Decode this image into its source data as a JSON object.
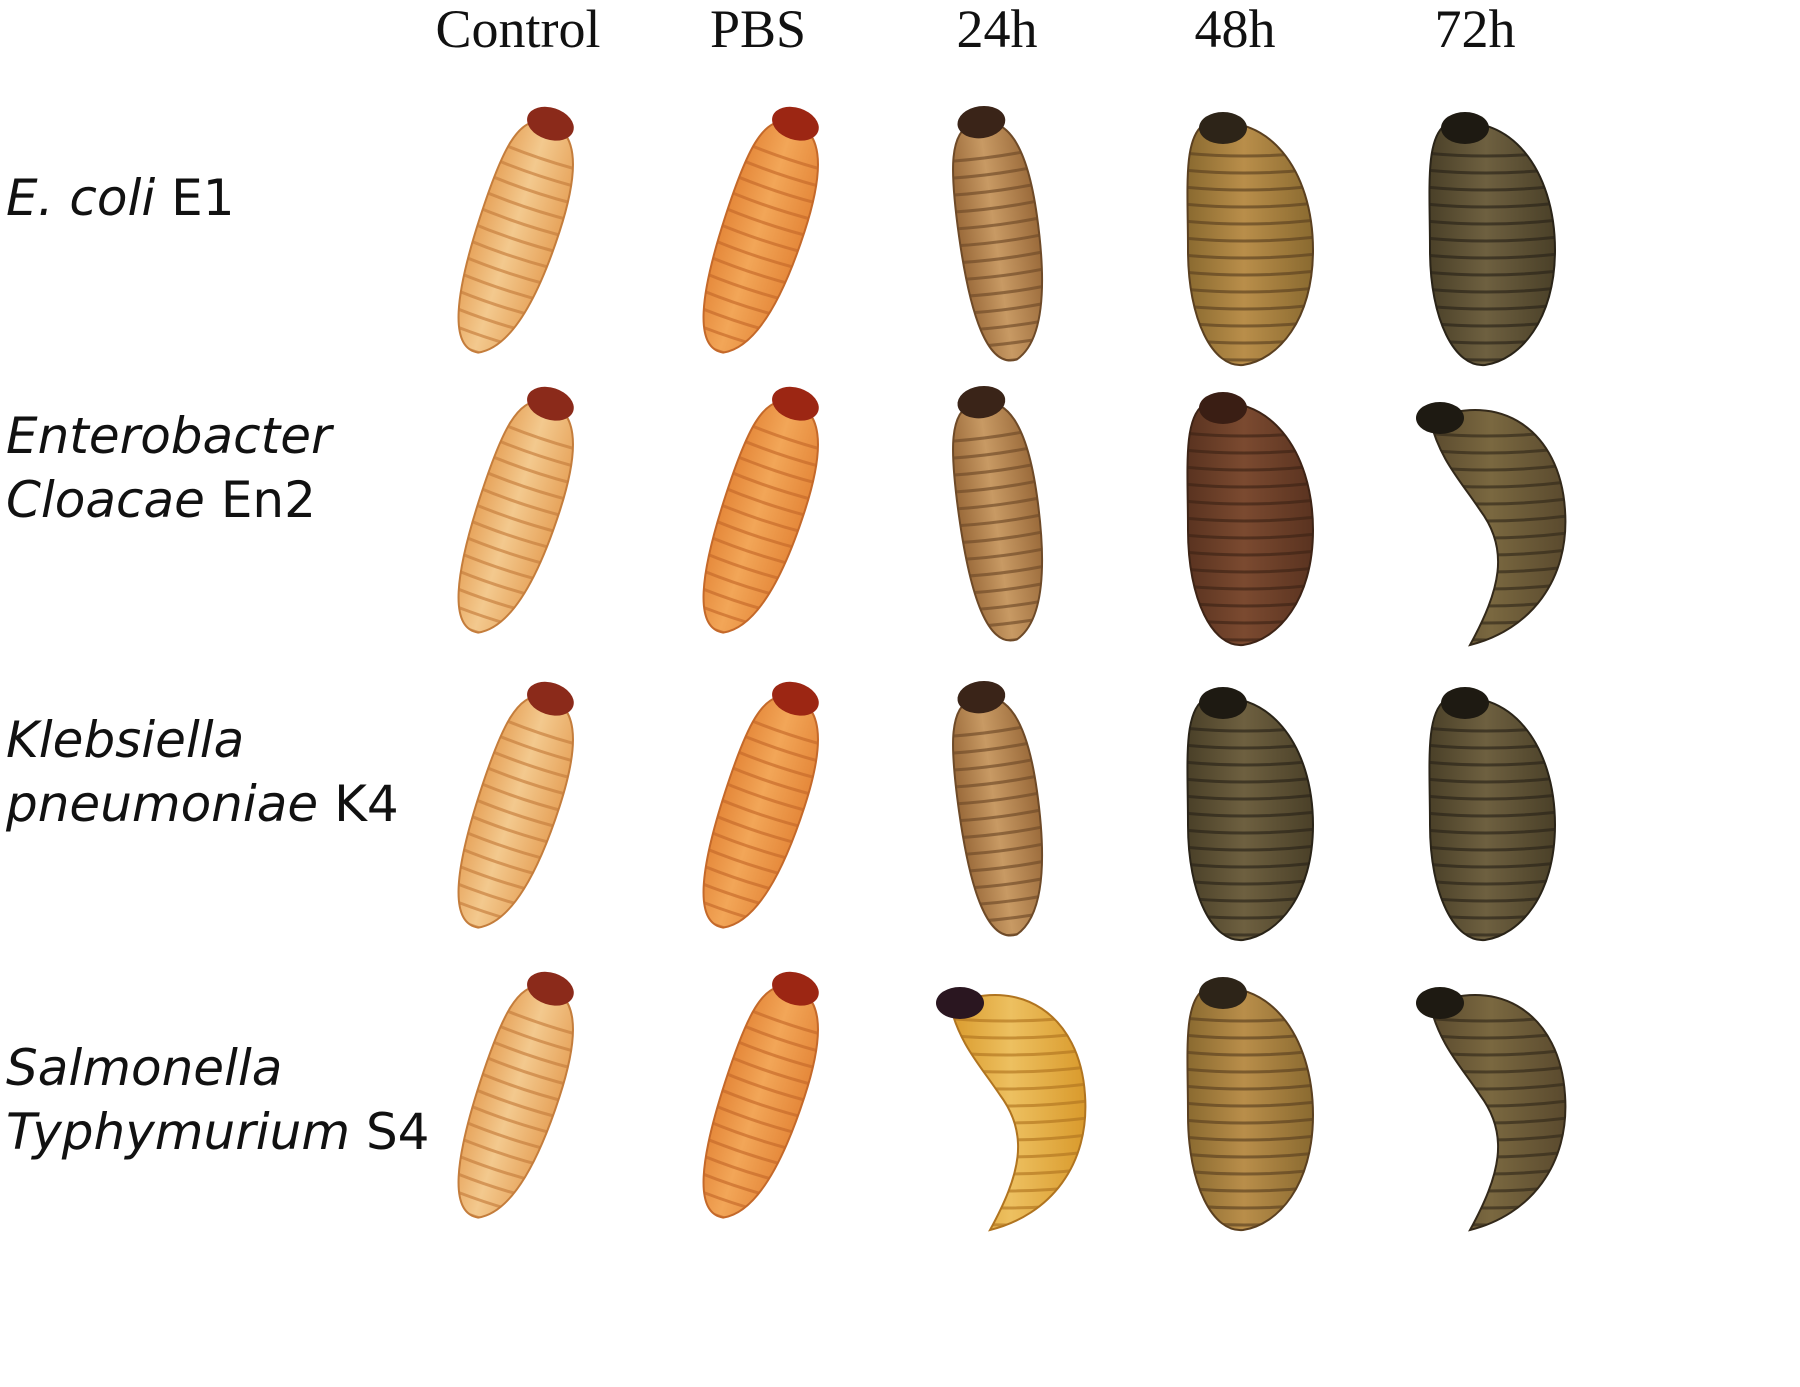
{
  "columns": [
    "Control",
    "PBS",
    "24h",
    "48h",
    "72h"
  ],
  "rows": [
    {
      "lines": [
        {
          "italic": "E. coli",
          "plain": " E1"
        }
      ],
      "stages": [
        "healthy",
        "healthy",
        "early",
        "mid",
        "late"
      ]
    },
    {
      "lines": [
        {
          "italic": "Enterobacter",
          "plain": ""
        },
        {
          "italic": "Cloacae",
          "plain": " En2"
        }
      ],
      "stages": [
        "healthy",
        "healthy",
        "early",
        "dark",
        "late-curved"
      ]
    },
    {
      "lines": [
        {
          "italic": "Klebsiella",
          "plain": ""
        },
        {
          "italic": "pneumoniae",
          "plain": " K4"
        }
      ],
      "stages": [
        "healthy",
        "healthy",
        "early",
        "late",
        "late"
      ]
    },
    {
      "lines": [
        {
          "italic": "Salmonella",
          "plain": ""
        },
        {
          "italic": "Typhymurium",
          "plain": " S4"
        }
      ],
      "stages": [
        "healthy",
        "healthy",
        "yellow-curved",
        "mid",
        "late-curved"
      ]
    }
  ],
  "stage_colors": {
    "healthy": {
      "body": "#e7a45c",
      "light": "#f3c98e",
      "head": "#8b2a1a",
      "band": "#c47d3c"
    },
    "healthy-pbs": {
      "body": "#e5883a",
      "light": "#f2a658",
      "head": "#9c2613",
      "band": "#c4692a"
    },
    "early": {
      "body": "#9a6a3a",
      "light": "#c89a64",
      "head": "#3a2418",
      "band": "#6e4a28"
    },
    "mid": {
      "body": "#8a6a30",
      "light": "#b98e4a",
      "head": "#2d2418",
      "band": "#5b4020"
    },
    "dark": {
      "body": "#5a3320",
      "light": "#7b4a30",
      "head": "#3a1e14",
      "band": "#3e2416"
    },
    "late": {
      "body": "#4a4028",
      "light": "#6e6040",
      "head": "#1e1a12",
      "band": "#2a2418"
    },
    "late-curved": {
      "body": "#5a4a2e",
      "light": "#7a6840",
      "head": "#1e1a12",
      "band": "#33291a"
    },
    "yellow-curved": {
      "body": "#d99a2c",
      "light": "#edc060",
      "head": "#2a1620",
      "band": "#b07420"
    }
  }
}
